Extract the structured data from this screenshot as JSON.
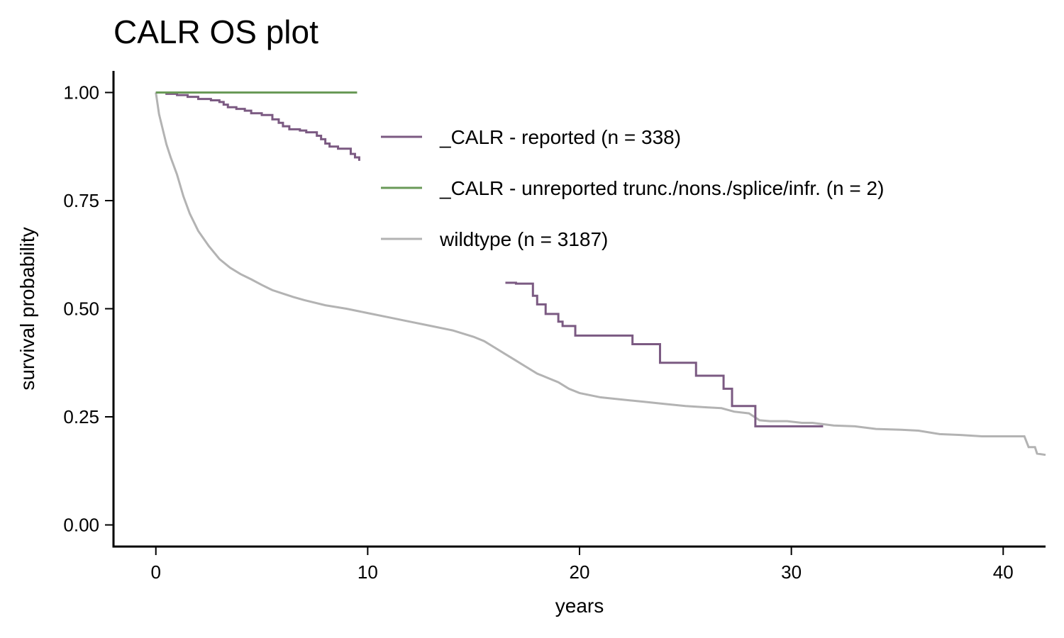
{
  "chart_data": {
    "type": "line",
    "title": "CALR OS plot",
    "xlabel": "years",
    "ylabel": "survival probability",
    "xlim": [
      -2,
      42
    ],
    "ylim": [
      -0.05,
      1.05
    ],
    "xticks": [
      0,
      10,
      20,
      30,
      40
    ],
    "yticks": [
      0.0,
      0.25,
      0.5,
      0.75,
      1.0
    ],
    "ytick_labels": [
      "0.00",
      "0.25",
      "0.50",
      "0.75",
      "1.00"
    ],
    "grid": false,
    "legend_placement": "top-center",
    "series": [
      {
        "name": "_CALR - reported (n = 338)",
        "color": "#7b5a82",
        "step": true,
        "points": [
          [
            0,
            1.0
          ],
          [
            0.5,
            0.997
          ],
          [
            1.0,
            0.994
          ],
          [
            1.5,
            0.99
          ],
          [
            2.0,
            0.985
          ],
          [
            2.6,
            0.982
          ],
          [
            3.0,
            0.978
          ],
          [
            3.2,
            0.972
          ],
          [
            3.4,
            0.966
          ],
          [
            3.8,
            0.962
          ],
          [
            4.2,
            0.958
          ],
          [
            4.5,
            0.952
          ],
          [
            5.0,
            0.948
          ],
          [
            5.5,
            0.938
          ],
          [
            5.8,
            0.93
          ],
          [
            6.0,
            0.922
          ],
          [
            6.3,
            0.915
          ],
          [
            6.8,
            0.912
          ],
          [
            7.1,
            0.908
          ],
          [
            7.6,
            0.9
          ],
          [
            7.8,
            0.892
          ],
          [
            8.0,
            0.882
          ],
          [
            8.2,
            0.875
          ],
          [
            8.6,
            0.87
          ],
          [
            9.0,
            0.87
          ],
          [
            9.2,
            0.858
          ],
          [
            9.4,
            0.85
          ],
          [
            9.6,
            0.842
          ]
        ],
        "points_late": [
          [
            16.5,
            0.56
          ],
          [
            17.0,
            0.558
          ],
          [
            17.8,
            0.53
          ],
          [
            18.0,
            0.51
          ],
          [
            18.4,
            0.488
          ],
          [
            19.0,
            0.47
          ],
          [
            19.2,
            0.46
          ],
          [
            19.8,
            0.438
          ],
          [
            22.5,
            0.418
          ],
          [
            23.8,
            0.375
          ],
          [
            25.5,
            0.345
          ],
          [
            26.8,
            0.315
          ],
          [
            27.2,
            0.275
          ],
          [
            28.3,
            0.228
          ],
          [
            31.5,
            0.228
          ]
        ]
      },
      {
        "name": "_CALR - unreported trunc./nons./splice/infr. (n = 2)",
        "color": "#6a9a58",
        "step": true,
        "points": [
          [
            0,
            1.0
          ],
          [
            9.5,
            1.0
          ]
        ]
      },
      {
        "name": "wildtype (n = 3187)",
        "color": "#b3b3b3",
        "step": false,
        "points": [
          [
            0,
            1.0
          ],
          [
            0.15,
            0.95
          ],
          [
            0.3,
            0.92
          ],
          [
            0.5,
            0.88
          ],
          [
            0.7,
            0.85
          ],
          [
            1.0,
            0.81
          ],
          [
            1.3,
            0.76
          ],
          [
            1.6,
            0.72
          ],
          [
            2.0,
            0.68
          ],
          [
            2.5,
            0.645
          ],
          [
            3.0,
            0.615
          ],
          [
            3.5,
            0.595
          ],
          [
            4.0,
            0.58
          ],
          [
            4.5,
            0.568
          ],
          [
            5.0,
            0.555
          ],
          [
            5.5,
            0.543
          ],
          [
            6.0,
            0.535
          ],
          [
            6.5,
            0.527
          ],
          [
            7.0,
            0.52
          ],
          [
            8.0,
            0.508
          ],
          [
            9.0,
            0.5
          ],
          [
            10.0,
            0.49
          ],
          [
            11.0,
            0.48
          ],
          [
            12.0,
            0.47
          ],
          [
            13.0,
            0.46
          ],
          [
            14.0,
            0.45
          ],
          [
            15.0,
            0.435
          ],
          [
            15.5,
            0.425
          ],
          [
            16.0,
            0.41
          ],
          [
            16.5,
            0.395
          ],
          [
            17.0,
            0.38
          ],
          [
            17.5,
            0.365
          ],
          [
            18.0,
            0.35
          ],
          [
            18.5,
            0.34
          ],
          [
            19.0,
            0.33
          ],
          [
            19.5,
            0.315
          ],
          [
            20.0,
            0.305
          ],
          [
            21.0,
            0.295
          ],
          [
            22.0,
            0.29
          ],
          [
            23.0,
            0.285
          ],
          [
            24.0,
            0.28
          ],
          [
            25.0,
            0.275
          ],
          [
            26.0,
            0.272
          ],
          [
            26.7,
            0.27
          ],
          [
            27.3,
            0.262
          ],
          [
            28.0,
            0.258
          ],
          [
            28.5,
            0.242
          ],
          [
            29.0,
            0.24
          ],
          [
            29.8,
            0.24
          ],
          [
            30.5,
            0.236
          ],
          [
            31.0,
            0.236
          ],
          [
            32.0,
            0.23
          ],
          [
            33.0,
            0.228
          ],
          [
            34.0,
            0.222
          ],
          [
            35.2,
            0.22
          ],
          [
            36.0,
            0.218
          ],
          [
            37.0,
            0.21
          ],
          [
            38.0,
            0.208
          ],
          [
            39.0,
            0.205
          ],
          [
            40.0,
            0.205
          ],
          [
            41.0,
            0.205
          ],
          [
            41.2,
            0.18
          ],
          [
            41.5,
            0.18
          ],
          [
            41.6,
            0.165
          ],
          [
            42.0,
            0.162
          ]
        ]
      }
    ]
  }
}
